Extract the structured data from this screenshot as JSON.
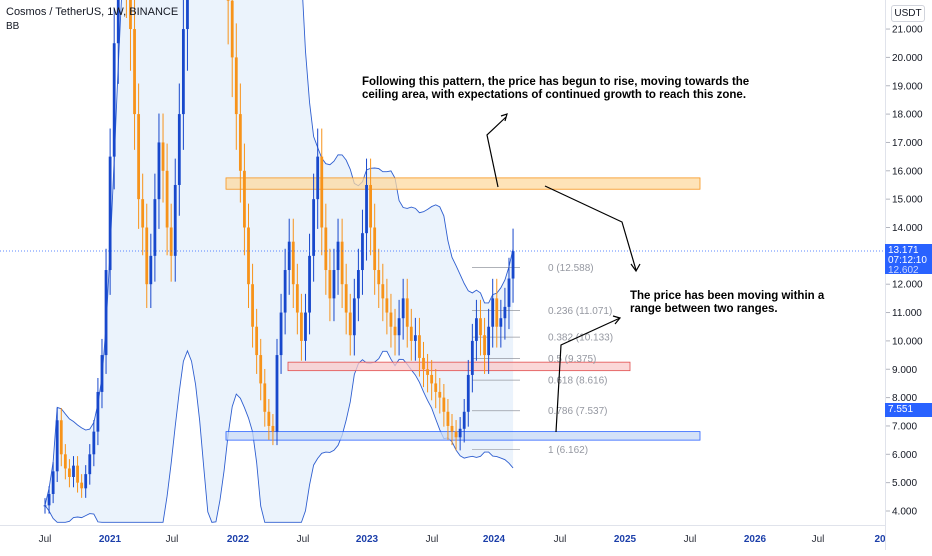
{
  "header": {
    "symbol": "Cosmos / TetherUS, 1W, BINANCE",
    "indicator": "BB",
    "currency": "USDT"
  },
  "annotations": {
    "top_note_line1": "Following this pattern, the price has begun to rise, moving towards the",
    "top_note_line2": "ceiling area, with expectations of continued growth to reach this zone.",
    "side_note_line1": "The price has been moving within a",
    "side_note_line2": "range between two ranges."
  },
  "price_tags": {
    "current": "13.171",
    "countdown": "07:12:10",
    "bb_tag": "7.551"
  },
  "colors": {
    "up": "#1848cc",
    "down": "#f7931a",
    "bb_line": "#2f5fd0",
    "bb_fill": "#e3eefb",
    "resistance_zone": "#fdd9a0",
    "support_zone": "#c6d8f6",
    "mid_zone": "#f9caca",
    "accent": "#2962ff"
  },
  "chart_data": {
    "type": "candlestick",
    "title": "Cosmos / TetherUS, 1W, BINANCE",
    "y_ticks": [
      "4.000",
      "5.000",
      "6.000",
      "7.000",
      "8.000",
      "9.000",
      "10.000",
      "11.000",
      "12.000",
      "13.000",
      "14.000",
      "15.000",
      "16.000",
      "17.000",
      "18.000",
      "19.000",
      "20.000",
      "21.000"
    ],
    "y_range": [
      3.5,
      22.0
    ],
    "x_ticks": [
      "Jul",
      "2021",
      "Jul",
      "2022",
      "Jul",
      "2023",
      "Jul",
      "2024",
      "Jul",
      "2025",
      "Jul",
      "2026",
      "Jul",
      "20"
    ],
    "fib_levels": [
      {
        "ratio": "0",
        "value": "12.588"
      },
      {
        "ratio": "0.236",
        "value": "11.071"
      },
      {
        "ratio": "0.382",
        "value": "10.133"
      },
      {
        "ratio": "0.5",
        "value": "9.375"
      },
      {
        "ratio": "0.618",
        "value": "8.616"
      },
      {
        "ratio": "0.786",
        "value": "7.537"
      },
      {
        "ratio": "1",
        "value": "6.162"
      }
    ],
    "zones": [
      {
        "name": "ceiling",
        "low": 15.35,
        "high": 15.75
      },
      {
        "name": "middle",
        "low": 8.95,
        "high": 9.25
      },
      {
        "name": "floor",
        "low": 6.5,
        "high": 6.8
      }
    ],
    "closes": [
      4.2,
      4.6,
      5.4,
      7.2,
      6.0,
      5.5,
      5.2,
      5.6,
      5.0,
      4.8,
      5.3,
      6.0,
      6.8,
      8.2,
      9.5,
      12.5,
      16.5,
      20.5,
      24,
      26,
      23,
      21,
      18,
      15,
      14,
      12,
      13,
      15,
      17,
      16,
      14,
      13,
      15.5,
      18,
      21,
      24,
      27,
      30,
      34,
      38,
      40,
      36,
      33,
      30,
      26,
      22,
      20,
      18,
      16,
      14,
      12,
      10.5,
      9.5,
      8.5,
      7.5,
      7.0,
      6.8,
      9.5,
      11,
      12.5,
      13.5,
      12,
      11,
      10,
      11,
      13,
      15,
      16.5,
      14,
      12.5,
      11.5,
      12.5,
      13.5,
      12,
      11,
      10.2,
      11.5,
      12.5,
      13.8,
      15.5,
      14,
      12.5,
      12,
      11.5,
      11,
      10.5,
      10.2,
      10.8,
      11.5,
      10.5,
      10,
      10.2,
      9.4,
      9.0,
      8.8,
      8.5,
      8.2,
      8.0,
      7.5,
      7.0,
      6.8,
      6.6,
      6.9,
      7.5,
      8.8,
      10,
      10.8,
      10.2,
      9.5,
      10.5,
      11.5,
      10.5,
      10.8,
      11.2,
      12.2,
      13.17
    ]
  }
}
